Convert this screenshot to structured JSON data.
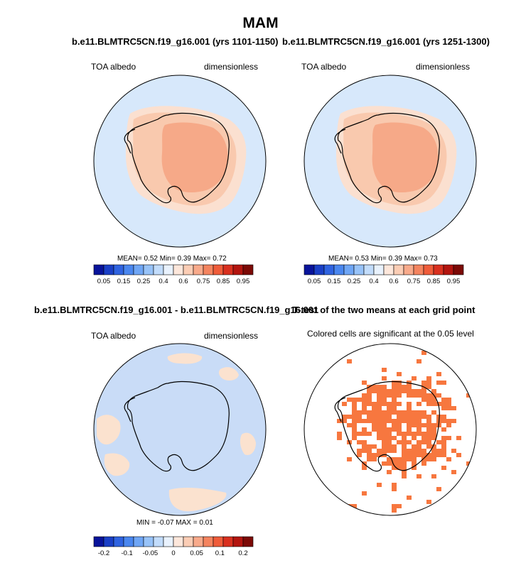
{
  "title": "MAM",
  "colors": {
    "ocean": "#d7e8fb",
    "ice_outer": "#fbe0d0",
    "ice_mid": "#f9c9ae",
    "ice_inner": "#f6a988",
    "diff_pos": "#fbe2cf",
    "diff_neg": "#c9dcf7",
    "sig": "#f7773f",
    "coast": "#000000"
  },
  "panels": {
    "p1": {
      "title": "b.e11.BLMTRC5CN.f19_g16.001 (yrs 1101-1150)",
      "left_label": "TOA albedo",
      "right_label": "dimensionless",
      "stats": "MEAN=   0.52  Min=   0.39  Max=   0.72"
    },
    "p2": {
      "title": "b.e11.BLMTRC5CN.f19_g16.001 (yrs 1251-1300)",
      "left_label": "TOA albedo",
      "right_label": "dimensionless",
      "stats": "MEAN=   0.53  Min=   0.39  Max=   0.73"
    },
    "p3": {
      "title": "b.e11.BLMTRC5CN.f19_g16.001 - b.e11.BLMTRC5CN.f19_g16.001",
      "left_label": "TOA albedo",
      "right_label": "dimensionless",
      "stats": "MIN =  -0.07 MAX =   0.01"
    },
    "p4": {
      "title": "T-test of the two means at each grid point",
      "subtitle": "Colored cells are significant at the 0.05 level"
    }
  },
  "colorbars": {
    "abs": {
      "colors": [
        "#08139a",
        "#1a3fc6",
        "#2f63e0",
        "#4a87ef",
        "#6fa6f5",
        "#98c3f8",
        "#c2dcfb",
        "#e9f2fd",
        "#fde7db",
        "#fbcdb5",
        "#f8aa8b",
        "#f4845f",
        "#ef5c3a",
        "#d9301f",
        "#b3150f",
        "#7c0a06"
      ],
      "labels": [
        "0.05",
        "0.15",
        "0.25",
        "0.4",
        "0.6",
        "0.75",
        "0.85",
        "0.95"
      ]
    },
    "diff": {
      "colors": [
        "#08139a",
        "#1a3fc6",
        "#2f63e0",
        "#4a87ef",
        "#6fa6f5",
        "#98c3f8",
        "#c2dcfb",
        "#e9f2fd",
        "#fde7db",
        "#fbcdb5",
        "#f8aa8b",
        "#f4845f",
        "#ef5c3a",
        "#d9301f",
        "#b3150f",
        "#7c0a06"
      ],
      "labels": [
        "-0.2",
        "-0.1",
        "-0.05",
        "0",
        "0.05",
        "0.1",
        "0.2"
      ]
    }
  },
  "chart_data": [
    {
      "type": "heatmap",
      "title": "b.e11.BLMTRC5CN.f19_g16.001 (yrs 1101-1150)",
      "variable": "TOA albedo",
      "units": "dimensionless",
      "season": "MAM",
      "mean": 0.52,
      "min": 0.39,
      "max": 0.72
    },
    {
      "type": "heatmap",
      "title": "b.e11.BLMTRC5CN.f19_g16.001 (yrs 1251-1300)",
      "variable": "TOA albedo",
      "units": "dimensionless",
      "season": "MAM",
      "mean": 0.53,
      "min": 0.39,
      "max": 0.73
    },
    {
      "type": "heatmap",
      "title": "b.e11.BLMTRC5CN.f19_g16.001 - b.e11.BLMTRC5CN.f19_g16.001",
      "variable": "TOA albedo",
      "units": "dimensionless",
      "min": -0.07,
      "max": 0.01
    },
    {
      "type": "heatmap",
      "title": "T-test of the two means at each grid point",
      "annotation": "Colored cells are significant at the 0.05 level",
      "significance_level": 0.05
    }
  ]
}
